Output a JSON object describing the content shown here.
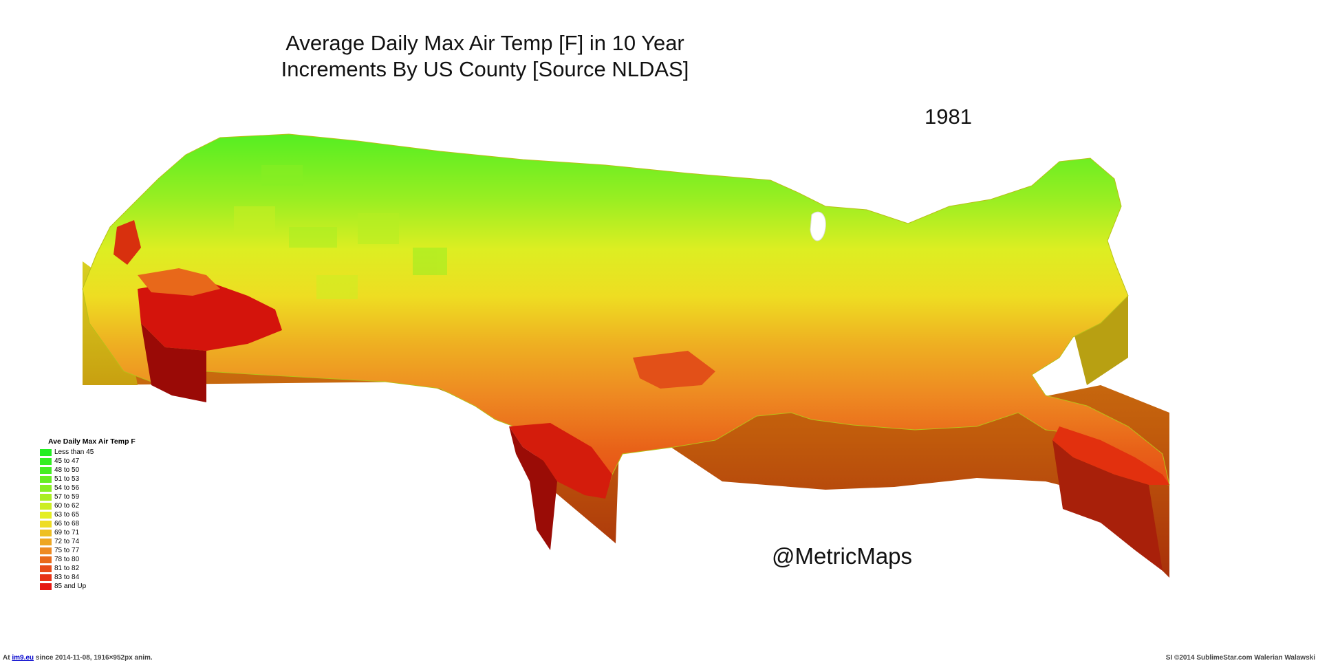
{
  "title": {
    "line1": "Average Daily Max Air Temp [F] in 10 Year",
    "line2": "Increments By US County [Source NLDAS]"
  },
  "year": "1981",
  "watermark": "@MetricMaps",
  "legend": {
    "title": "Ave Daily Max Air Temp F",
    "items": [
      {
        "label": "Less than 45",
        "color": "#22ee22"
      },
      {
        "label": "45 to 47",
        "color": "#33ee22"
      },
      {
        "label": "48 to 50",
        "color": "#44ee22"
      },
      {
        "label": "51 to 53",
        "color": "#66ee22"
      },
      {
        "label": "54 to 56",
        "color": "#88ee22"
      },
      {
        "label": "57 to 59",
        "color": "#aaee22"
      },
      {
        "label": "60 to 62",
        "color": "#ccee22"
      },
      {
        "label": "63 to 65",
        "color": "#e4ee22"
      },
      {
        "label": "66 to 68",
        "color": "#eedd22"
      },
      {
        "label": "69 to 71",
        "color": "#eec022"
      },
      {
        "label": "72 to 74",
        "color": "#eea622"
      },
      {
        "label": "75 to 77",
        "color": "#ee8a22"
      },
      {
        "label": "78 to 80",
        "color": "#e96a1a"
      },
      {
        "label": "81 to 82",
        "color": "#e84c18"
      },
      {
        "label": "83 to 84",
        "color": "#e73214"
      },
      {
        "label": "85 and Up",
        "color": "#e61812"
      }
    ]
  },
  "footer": {
    "left_prefix": "At ",
    "left_link": "im9.eu",
    "left_suffix": " since 2014-11-08, 1916×952px anim.",
    "right": "SI ©2014 SublimeStar.com Walerian Walawski"
  }
}
